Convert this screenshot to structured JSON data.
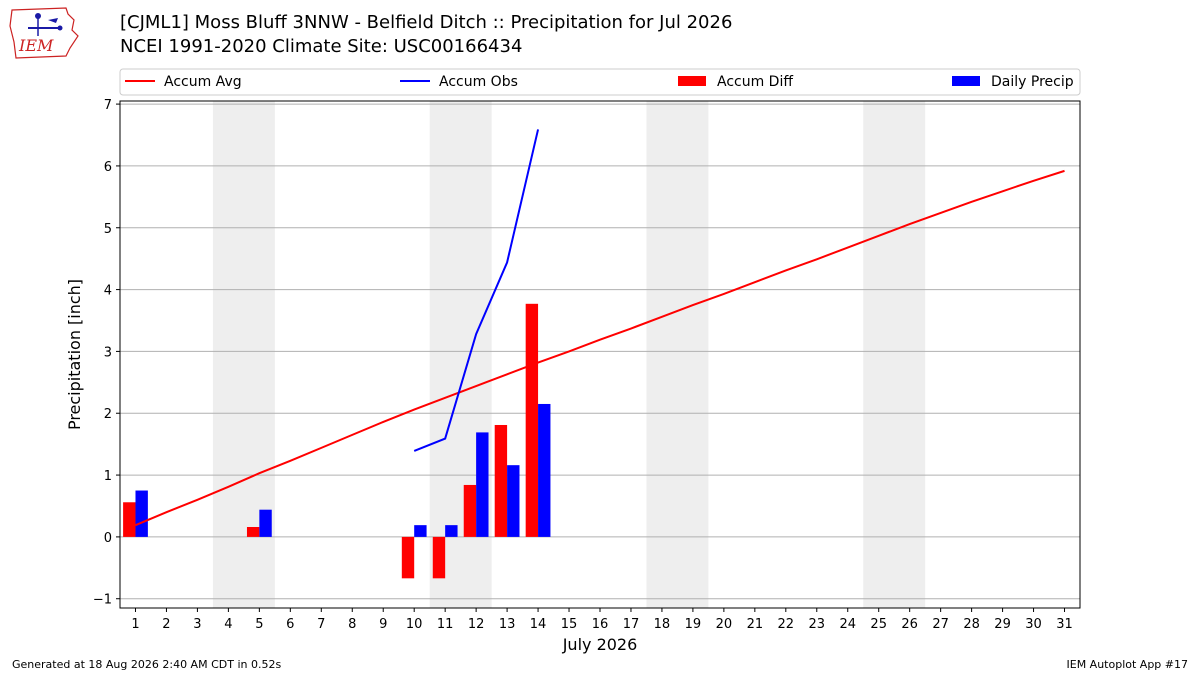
{
  "header": {
    "title_line1": "[CJML1] Moss Bluff 3NNW - Belfield Ditch :: Precipitation for Jul 2026",
    "title_line2": "NCEI 1991-2020 Climate Site: USC00166434",
    "logo_text": "IEM"
  },
  "footer": {
    "generated": "Generated at 18 Aug 2026 2:40 AM CDT in 0.52s",
    "app": "IEM Autoplot App #17"
  },
  "colors": {
    "avg": "#ff0000",
    "obs": "#0000ff",
    "diff": "#ff0000",
    "daily": "#0000ff",
    "weekend_shade": "#eeeeee",
    "grid": "#b0b0b0"
  },
  "chart_data": {
    "type": "bar",
    "xlabel": "July 2026",
    "ylabel": "Precipitation [inch]",
    "xlim": [
      0.5,
      31.5
    ],
    "ylim": [
      -1.15,
      7.05
    ],
    "yticks": [
      -1,
      0,
      1,
      2,
      3,
      4,
      5,
      6,
      7
    ],
    "grid": "horizontal",
    "legend_placement": "top, above plot",
    "days": [
      1,
      2,
      3,
      4,
      5,
      6,
      7,
      8,
      9,
      10,
      11,
      12,
      13,
      14,
      15,
      16,
      17,
      18,
      19,
      20,
      21,
      22,
      23,
      24,
      25,
      26,
      27,
      28,
      29,
      30,
      31
    ],
    "shaded_day_ranges": [
      [
        4,
        5
      ],
      [
        11,
        12
      ],
      [
        18,
        19
      ],
      [
        25,
        26
      ]
    ],
    "series": [
      {
        "name": "Accum Avg",
        "kind": "line",
        "x": [
          1,
          2,
          3,
          4,
          5,
          6,
          7,
          8,
          9,
          10,
          11,
          12,
          13,
          14,
          15,
          16,
          17,
          18,
          19,
          20,
          21,
          22,
          23,
          24,
          25,
          26,
          27,
          28,
          29,
          30,
          31
        ],
        "values": [
          0.19,
          0.4,
          0.6,
          0.81,
          1.03,
          1.23,
          1.44,
          1.65,
          1.86,
          2.06,
          2.25,
          2.44,
          2.63,
          2.82,
          3.0,
          3.19,
          3.37,
          3.56,
          3.75,
          3.93,
          4.12,
          4.31,
          4.49,
          4.68,
          4.87,
          5.06,
          5.24,
          5.42,
          5.59,
          5.76,
          5.92
        ]
      },
      {
        "name": "Accum Obs",
        "kind": "line",
        "x": [
          10,
          11,
          12,
          13,
          14
        ],
        "values": [
          1.39,
          1.59,
          3.28,
          4.44,
          6.59
        ]
      },
      {
        "name": "Accum Diff",
        "kind": "bar",
        "x": [
          1,
          5,
          10,
          11,
          12,
          13,
          14
        ],
        "values": [
          0.56,
          0.16,
          -0.67,
          -0.67,
          0.84,
          1.81,
          3.77
        ]
      },
      {
        "name": "Daily Precip",
        "kind": "bar",
        "x": [
          1,
          5,
          10,
          11,
          12,
          13,
          14
        ],
        "values": [
          0.75,
          0.44,
          0.19,
          0.19,
          1.69,
          1.16,
          2.15
        ]
      }
    ]
  }
}
